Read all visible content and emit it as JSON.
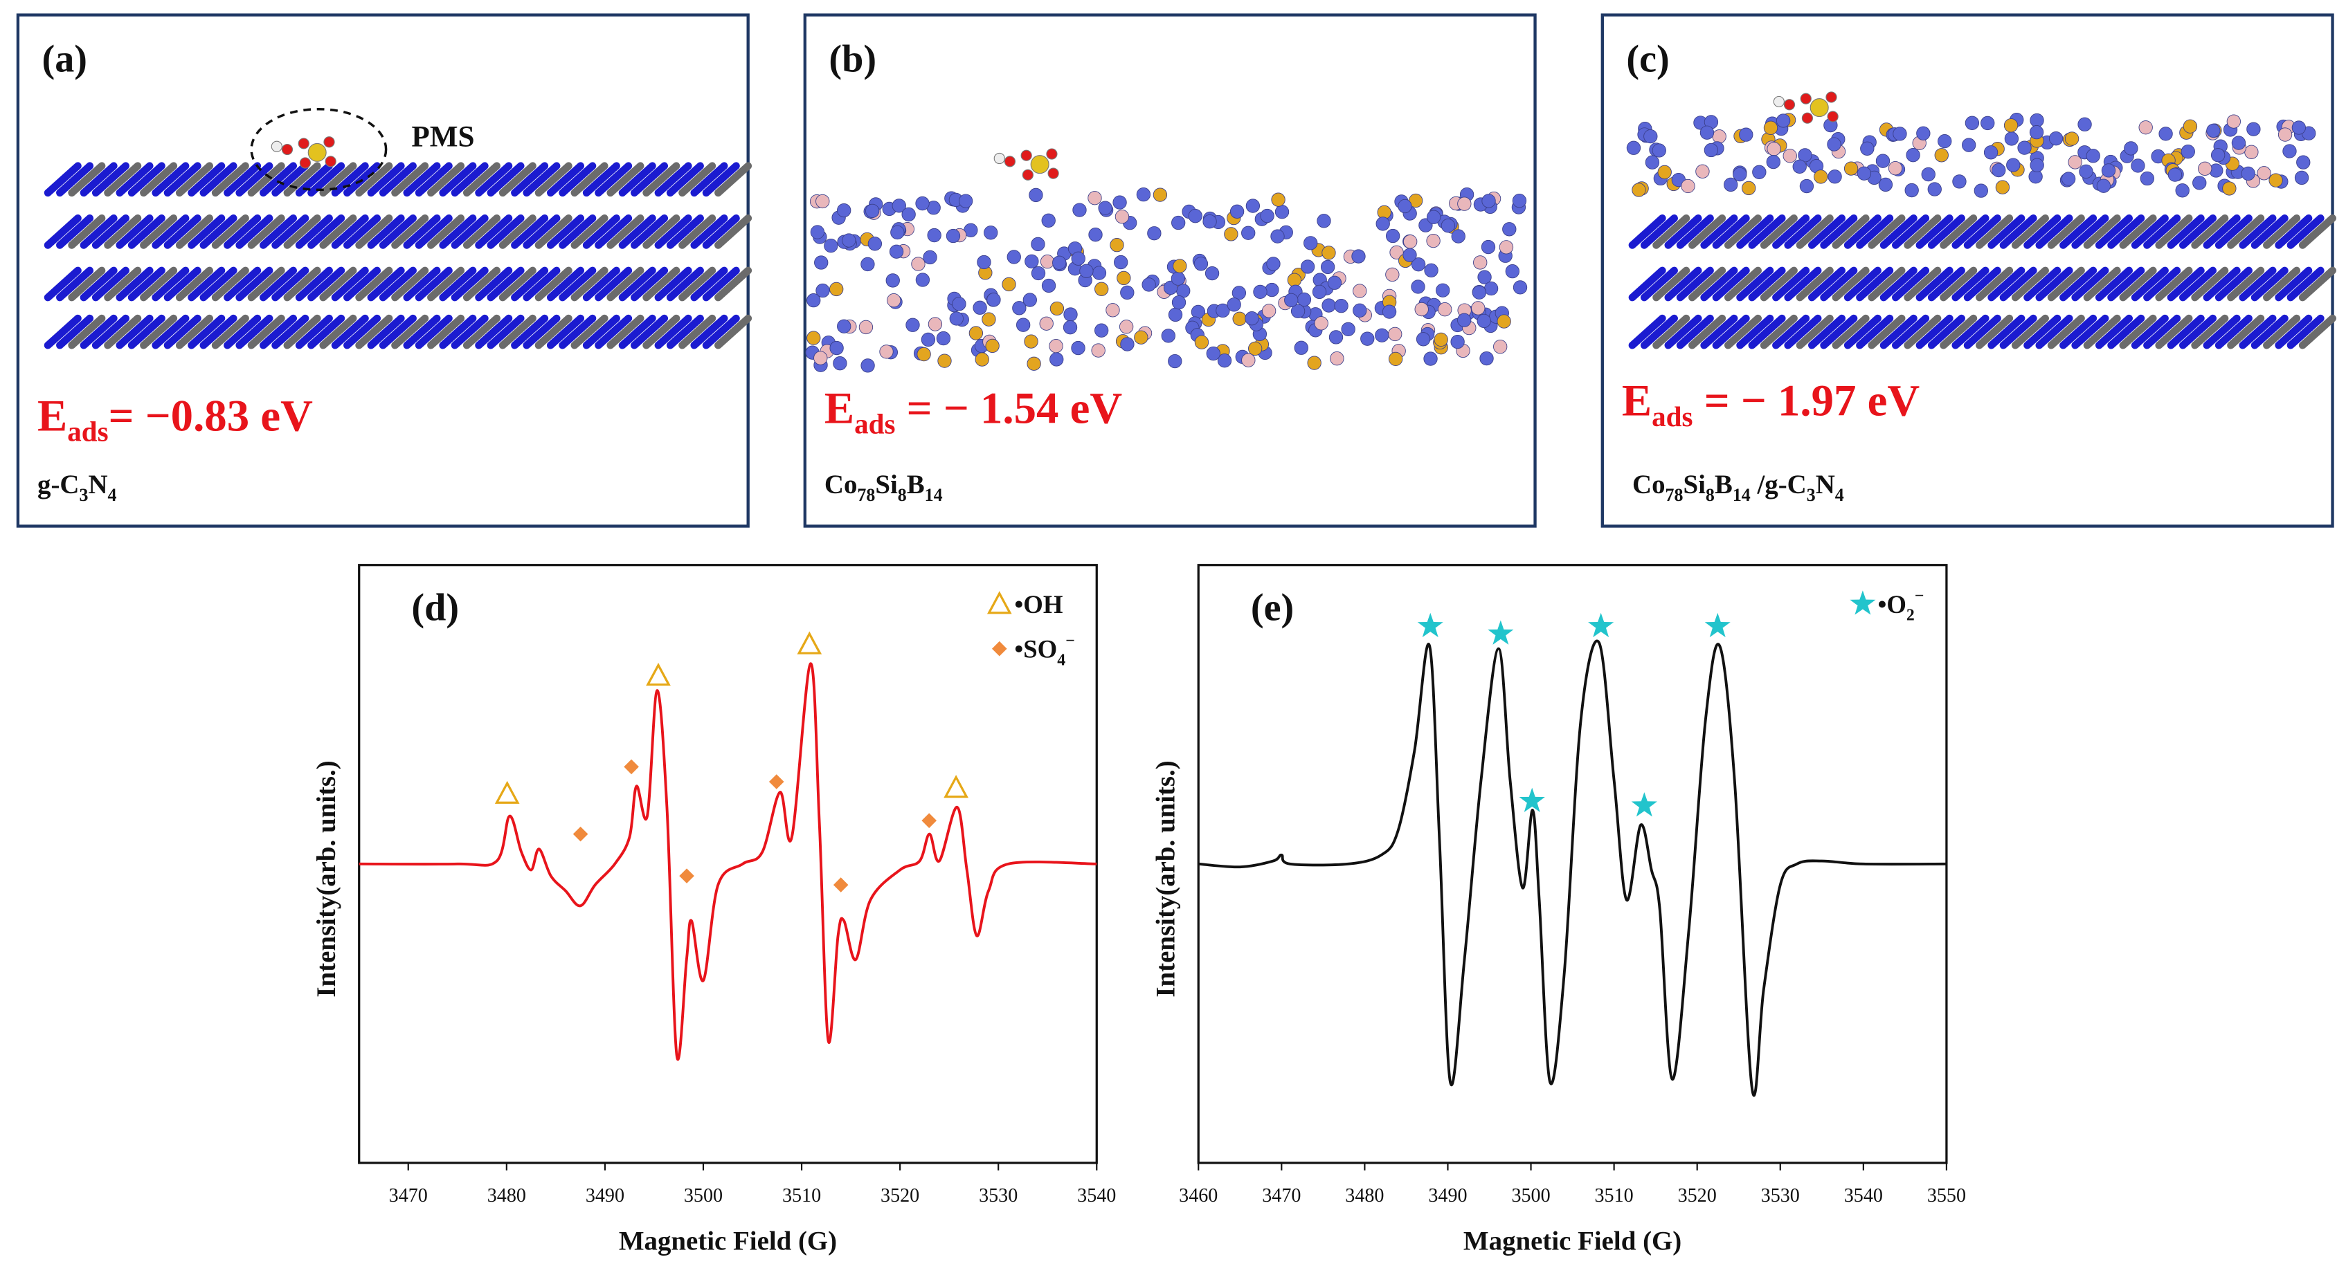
{
  "panels": [
    {
      "label": "(a)",
      "annotation": "PMS",
      "energy": {
        "symbol": "E",
        "subscript": "ads",
        "text": "= −0.83 eV"
      },
      "material": [
        "g-C",
        "3",
        "N",
        "4"
      ]
    },
    {
      "label": "(b)",
      "energy": {
        "symbol": "E",
        "subscript": "ads",
        "text": " = − 1.54 eV"
      },
      "material": [
        "Co",
        "78",
        "Si",
        "8",
        "B",
        "14"
      ]
    },
    {
      "label": "(c)",
      "energy": {
        "symbol": "E",
        "subscript": "ads",
        "text": " = − 1.97 eV"
      },
      "material": [
        "Co",
        "78",
        "Si",
        "8",
        "B",
        "14",
        " /g-C",
        "3",
        "N",
        "4"
      ]
    }
  ],
  "chart_data": [
    {
      "type": "line",
      "label": "(d)",
      "xlabel": "Magnetic Field (G)",
      "ylabel": "Intensity(arb. units.)",
      "xlim": [
        3465,
        3540
      ],
      "xticks": [
        3470,
        3480,
        3490,
        3500,
        3510,
        3520,
        3530,
        3540
      ],
      "ylim": [
        -1,
        1
      ],
      "legend": [
        {
          "marker": "triangle",
          "color": "#e6a817",
          "parts": [
            "•OH"
          ]
        },
        {
          "marker": "diamond",
          "color": "#f08a3c",
          "parts": [
            "•SO",
            "4",
            "−"
          ]
        }
      ],
      "x": [
        3465,
        3475,
        3479,
        3480.3,
        3481.5,
        3482.5,
        3483.3,
        3484.5,
        3486,
        3487.5,
        3489,
        3491,
        3492.5,
        3493.2,
        3494.3,
        3495.3,
        3496.3,
        3497.3,
        3498.3,
        3498.8,
        3500,
        3501.5,
        3504,
        3506,
        3507.8,
        3509,
        3510.9,
        3511.8,
        3512.7,
        3513.7,
        3514.3,
        3515.5,
        3517,
        3520,
        3522,
        3523,
        3524,
        3525.8,
        3526.8,
        3527.8,
        3529,
        3531,
        3540
      ],
      "series": [
        {
          "color": "#e8141b",
          "values": [
            0,
            0,
            0.01,
            0.16,
            0.04,
            -0.02,
            0.05,
            -0.04,
            -0.09,
            -0.14,
            -0.07,
            0,
            0.09,
            0.26,
            0.16,
            0.58,
            0.19,
            -0.64,
            -0.32,
            -0.19,
            -0.39,
            -0.07,
            0,
            0.04,
            0.24,
            0.09,
            0.67,
            0.14,
            -0.59,
            -0.24,
            -0.19,
            -0.32,
            -0.12,
            -0.02,
            0.01,
            0.1,
            0.01,
            0.19,
            -0.02,
            -0.24,
            -0.09,
            0,
            0
          ]
        }
      ]
    },
    {
      "type": "line",
      "label": "(e)",
      "xlabel": "Magnetic Field (G)",
      "ylabel": "Intensity(arb. units.)",
      "xlim": [
        3460,
        3550
      ],
      "xticks": [
        3460,
        3470,
        3480,
        3490,
        3500,
        3510,
        3520,
        3530,
        3540,
        3550
      ],
      "ylim": [
        -1,
        1
      ],
      "legend": [
        {
          "marker": "star",
          "color": "#22c4cc",
          "parts": [
            "•O",
            "2",
            "−"
          ]
        }
      ],
      "x": [
        3460,
        3465,
        3469,
        3470,
        3471,
        3478,
        3482,
        3484,
        3486,
        3487.8,
        3489,
        3490.3,
        3492,
        3494,
        3496.1,
        3497.5,
        3499,
        3500.2,
        3501,
        3502.3,
        3504,
        3506,
        3508.2,
        3510,
        3511.5,
        3513.2,
        3514.5,
        3515.5,
        3517,
        3519,
        3521,
        3522.7,
        3524.5,
        3526.6,
        3528,
        3530,
        3532,
        3535,
        3540,
        3550
      ],
      "series": [
        {
          "color": "#111111",
          "values": [
            0,
            -0.01,
            0.01,
            0.03,
            0,
            0,
            0.03,
            0.11,
            0.38,
            0.73,
            0.08,
            -0.73,
            -0.32,
            0.28,
            0.72,
            0.28,
            -0.08,
            0.18,
            -0.12,
            -0.73,
            -0.37,
            0.48,
            0.74,
            0.28,
            -0.12,
            0.13,
            -0.02,
            -0.15,
            -0.72,
            -0.22,
            0.48,
            0.73,
            0.28,
            -0.75,
            -0.42,
            -0.07,
            0,
            0.01,
            0,
            0
          ]
        }
      ]
    }
  ]
}
